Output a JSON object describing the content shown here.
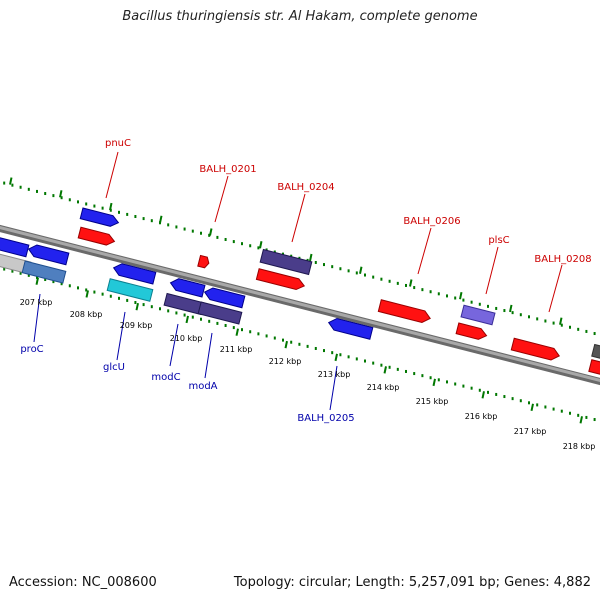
{
  "title": "Bacillus thuringiensis str. Al Hakam, complete genome",
  "footer": {
    "accession": "Accession: NC_008600",
    "summary": "Topology: circular; Length: 5,257,091 bp; Genes: 4,882"
  },
  "colors": {
    "forward_gene": "#ff0000",
    "reverse_gene": "#0000ee",
    "forward_label": "#cc0000",
    "reverse_label": "#0000aa",
    "tick": "#007700",
    "backbone": "#888888",
    "tick_label": "#000000"
  },
  "scale": {
    "unit": "kbp",
    "labels": [
      "207 kbp",
      "208 kbp",
      "209 kbp",
      "210 kbp",
      "211 kbp",
      "212 kbp",
      "213 kbp",
      "214 kbp",
      "215 kbp",
      "216 kbp",
      "217 kbp",
      "218 kbp"
    ]
  },
  "forward_labels": [
    "pnuC",
    "BALH_0201",
    "BALH_0204",
    "BALH_0206",
    "plsC",
    "BALH_0208"
  ],
  "reverse_labels": [
    "proC",
    "glcU",
    "modC",
    "modA",
    "BALH_0205"
  ]
}
